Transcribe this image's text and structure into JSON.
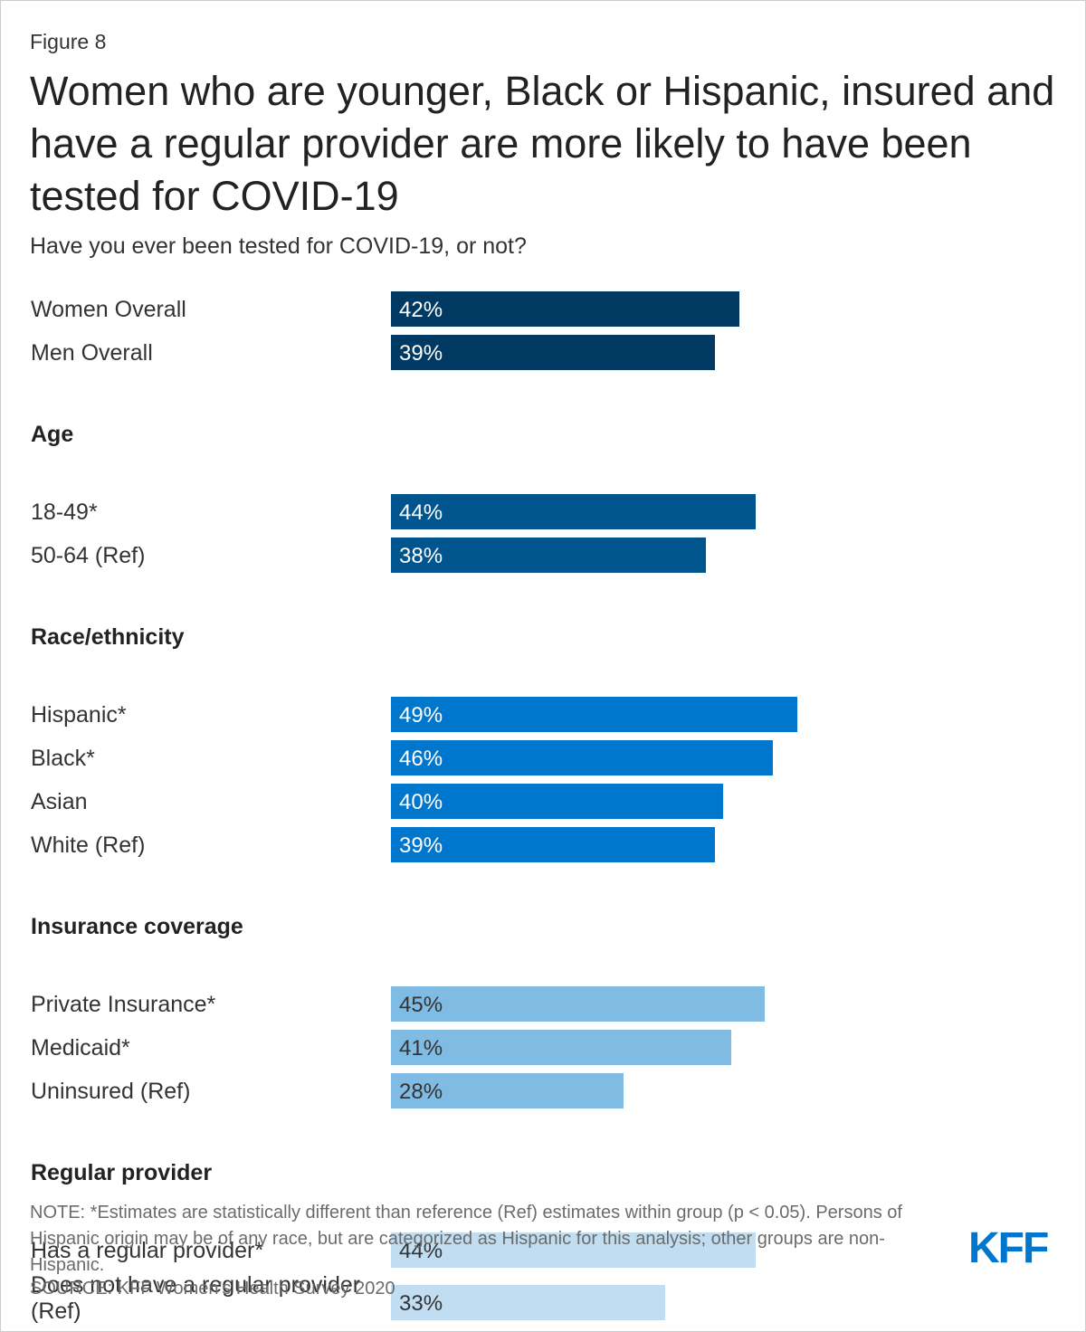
{
  "figure_label": "Figure 8",
  "chart_data": {
    "type": "bar",
    "orientation": "horizontal",
    "title": "Women who are younger, Black or Hispanic, insured and have a regular provider are more likely to have been tested for COVID-19",
    "subtitle": "Have you ever been tested for COVID-19, or not?",
    "unit": "%",
    "xlim": [
      0,
      100
    ],
    "groups": [
      {
        "heading": "",
        "color": "#003a63",
        "items": [
          {
            "label": "Women Overall",
            "value": 42
          },
          {
            "label": "Men Overall",
            "value": 39
          }
        ]
      },
      {
        "heading": "Age",
        "color": "#00558f",
        "items": [
          {
            "label": "18-49*",
            "value": 44
          },
          {
            "label": "50-64 (Ref)",
            "value": 38
          }
        ]
      },
      {
        "heading": "Race/ethnicity",
        "color": "#0077cc",
        "items": [
          {
            "label": "Hispanic*",
            "value": 49
          },
          {
            "label": "Black*",
            "value": 46
          },
          {
            "label": "Asian",
            "value": 40
          },
          {
            "label": "White (Ref)",
            "value": 39
          }
        ]
      },
      {
        "heading": "Insurance coverage",
        "color": "#7fbbe3",
        "items": [
          {
            "label": "Private Insurance*",
            "value": 45
          },
          {
            "label": "Medicaid*",
            "value": 41
          },
          {
            "label": "Uninsured (Ref)",
            "value": 28
          }
        ]
      },
      {
        "heading": "Regular provider",
        "color": "#c0ddf1",
        "items": [
          {
            "label": "Has a regular provider*",
            "value": 44
          },
          {
            "label": "Does not have a regular provider (Ref)",
            "value": 33
          }
        ]
      }
    ]
  },
  "note": "NOTE: *Estimates are statistically different than reference (Ref) estimates within group (p < 0.05). Persons of Hispanic origin may be of any race, but are categorized as Hispanic for this analysis; other groups are non-Hispanic.",
  "source": "SOURCE: KFF Women's Health Survey 2020",
  "logo": {
    "text": "KFF",
    "color": "#0077cc"
  }
}
